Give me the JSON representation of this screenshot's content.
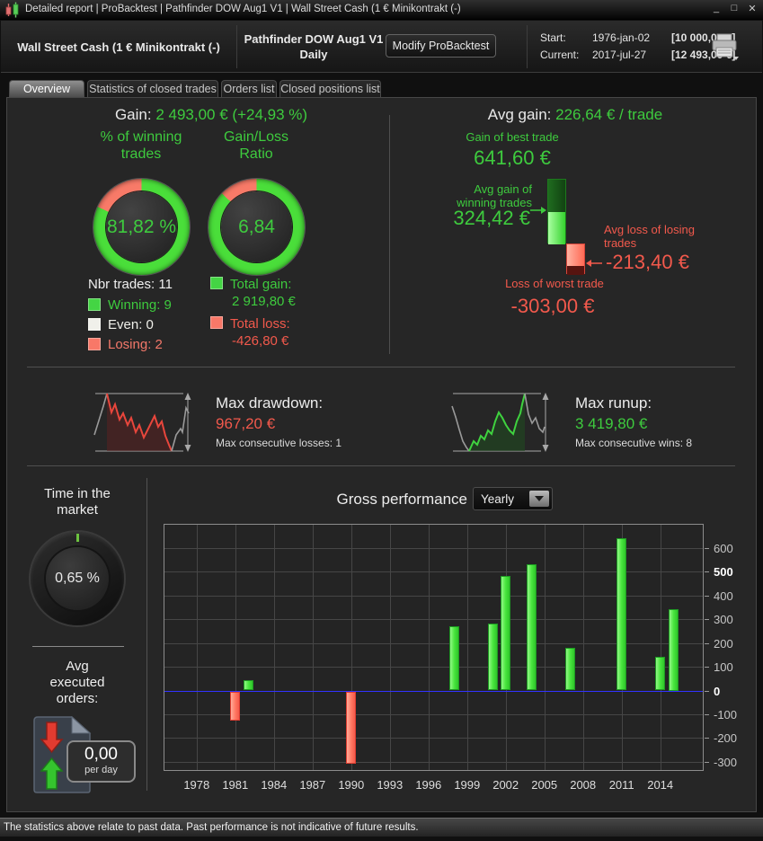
{
  "colors": {
    "green_text": "#3ecb3e",
    "red_text": "#f2594c",
    "ring_green": "#4ade3a",
    "ring_red": "#f87a68",
    "swatch_winning": "#44d544",
    "swatch_even": "#f0f0ea",
    "swatch_losing": "#f87868",
    "zero_line": "#3232ff"
  },
  "window": {
    "title": "Detailed report | ProBacktest | Pathfinder DOW Aug1 V1 | Wall Street Cash (1 € Minikontrakt (-)",
    "controls": {
      "minimize": "_",
      "maximize": "□",
      "close": "✕"
    }
  },
  "header": {
    "instrument": "Wall Street Cash (1 € Minikontrakt (-)",
    "strategy": "Pathfinder DOW Aug1 V1",
    "timeframe": "Daily",
    "modify_button": "Modify ProBacktest",
    "start_label": "Start:",
    "start_date": "1976-jan-02",
    "start_amount": "[10 000,00 €]",
    "current_label": "Current:",
    "current_date": "2017-jul-27",
    "current_amount": "[12 493,00 €]"
  },
  "tabs": [
    {
      "label": "Overview",
      "active": true
    },
    {
      "label": "Statistics of closed trades",
      "active": false
    },
    {
      "label": "Orders list",
      "active": false
    },
    {
      "label": "Closed positions list",
      "active": false
    }
  ],
  "overview": {
    "gain_label": "Gain:",
    "gain_value": "2 493,00 € (+24,93 %)",
    "winning_trades": {
      "title_line1": "% of winning",
      "title_line2": "trades",
      "value": "81,82 %",
      "pct": 81.82
    },
    "gain_loss_ratio": {
      "title_line1": "Gain/Loss",
      "title_line2": "Ratio",
      "value": "6,84",
      "green_pct": 87.24
    },
    "nbr_trades": "Nbr trades: 11",
    "trade_legend": [
      {
        "label": "Winning: 9",
        "color": "#44d544"
      },
      {
        "label": "Even: 0",
        "color": "#f0f0ea"
      },
      {
        "label": "Losing: 2",
        "color": "#f87868"
      }
    ],
    "totals": {
      "gain_label": "Total gain:",
      "gain_value": "2 919,80 €",
      "loss_label": "Total loss:",
      "loss_value": "-426,80 €"
    },
    "avg": {
      "label": "Avg gain:",
      "value": "226,64 € / trade",
      "best_label": "Gain of best trade",
      "best_value": "641,60 €",
      "avg_win_label_line1": "Avg gain of",
      "avg_win_label_line2": "winning trades",
      "avg_win_value": "324,42 €",
      "avg_loss_label_line1": "Avg loss of losing",
      "avg_loss_label_line2": "trades",
      "avg_loss_value": "-213,40 €",
      "worst_label": "Loss of worst trade",
      "worst_value": "-303,00 €",
      "bar_numbers": {
        "best": 641.6,
        "avg_win": 324.42,
        "avg_loss": -213.4,
        "worst": -303.0
      }
    }
  },
  "drawdown": {
    "title": "Max drawdown:",
    "value": "967,20 €",
    "subtitle": "Max consecutive losses: 1"
  },
  "runup": {
    "title": "Max runup:",
    "value": "3 419,80 €",
    "subtitle": "Max consecutive wins: 8"
  },
  "time_in_market": {
    "title_line1": "Time in the",
    "title_line2": "market",
    "value": "0,65 %",
    "pct": 0.65
  },
  "avg_orders": {
    "title_line1": "Avg",
    "title_line2": "executed",
    "title_line3": "orders:",
    "value": "0,00",
    "unit": "per day"
  },
  "performance": {
    "label": "Gross performance",
    "period_value": "Yearly"
  },
  "chart_data": {
    "type": "bar",
    "title": "Gross performance",
    "period": "Yearly",
    "x": [
      1981,
      1982,
      1990,
      1998,
      2001,
      2002,
      2004,
      2007,
      2011,
      2014,
      2015
    ],
    "values": [
      -123.8,
      41.9,
      -303.0,
      272.0,
      283.0,
      484.0,
      530.0,
      180.0,
      641.6,
      143.0,
      344.3
    ],
    "xticks": [
      1978,
      1981,
      1984,
      1987,
      1990,
      1993,
      1996,
      1999,
      2002,
      2005,
      2008,
      2011,
      2014
    ],
    "yticks": [
      600,
      500,
      400,
      300,
      200,
      100,
      0,
      -100,
      -200,
      -300
    ],
    "bold_yticks": [
      500,
      0
    ],
    "xlim": [
      1975.5,
      2017.3
    ],
    "ylim": [
      -335,
      698
    ],
    "grid": true,
    "legend": "none",
    "axis_side": "right",
    "zero_line_color": "#3232ff",
    "positive_color": "#47e23c",
    "negative_color": "#ff7a64"
  },
  "footer": {
    "text": "The statistics above relate to past data. Past performance is not indicative of future results."
  }
}
